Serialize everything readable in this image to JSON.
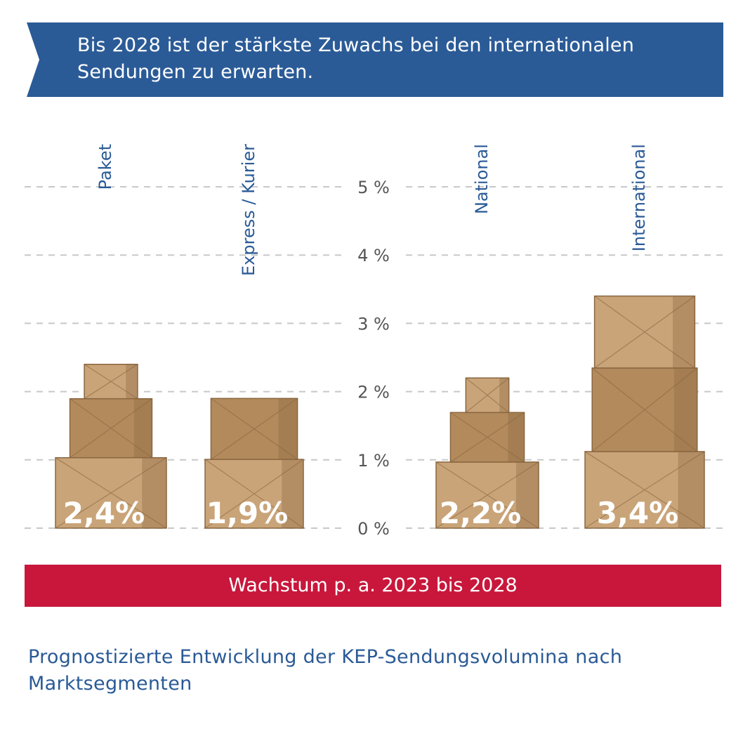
{
  "header": {
    "title_line1": "Bis 2028 ist der stärkste Zuwachs bei den internationalen",
    "title_line2": "Sendungen zu erwarten."
  },
  "colors": {
    "banner": "#2b5b97",
    "accent_red": "#c8173b",
    "label_blue": "#2a5a96",
    "axis_text": "#555555",
    "grid": "#c8c8c8",
    "box_light": "#c9a478",
    "box_mid": "#b38a5c",
    "box_dark": "#8a6640"
  },
  "chart_data": {
    "type": "bar",
    "title": "Bis 2028 ist der stärkste Zuwachs bei den internationalen Sendungen zu erwarten.",
    "categories": [
      "Paket",
      "Express / Kurier",
      "National",
      "International"
    ],
    "values": [
      2.4,
      1.9,
      2.2,
      3.4
    ],
    "value_labels": [
      "2,4%",
      "1,9%",
      "2,2%",
      "3,4%"
    ],
    "y_ticks": [
      0,
      1,
      2,
      3,
      4,
      5
    ],
    "y_tick_labels": [
      "0 %",
      "1 %",
      "2 %",
      "3 %",
      "4 %",
      "5 %"
    ],
    "ylim": [
      0,
      5
    ],
    "xlabel": "Wachstum p. a. 2023 bis 2028",
    "ylabel": "",
    "grid": true
  },
  "footer": {
    "xlabel": "Wachstum p. a. 2023 bis 2028",
    "caption_line1": "Prognostizierte Entwicklung der KEP-Sendungsvolumina nach",
    "caption_line2": "Marktsegmenten"
  }
}
